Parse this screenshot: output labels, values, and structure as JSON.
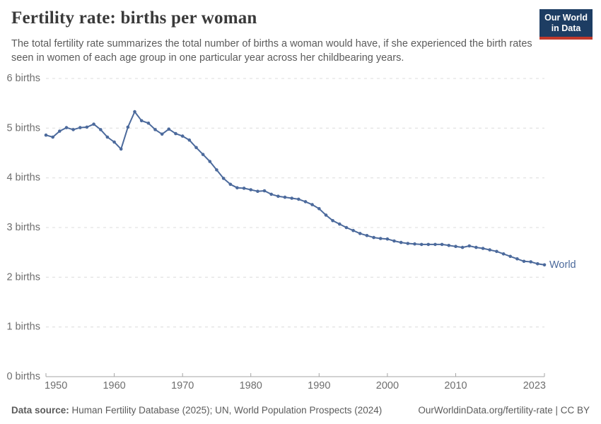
{
  "header": {
    "title": "Fertility rate: births per woman",
    "subtitle": "The total fertility rate summarizes the total number of births a woman would have, if she experienced the birth rates seen in women of each age group in one particular year across her childbearing years.",
    "logo": {
      "line1": "Our World",
      "line2": "in Data",
      "bg_color": "#1d3d63",
      "accent_color": "#c0392b"
    }
  },
  "chart_data": {
    "type": "line",
    "title": "Fertility rate: births per woman",
    "series_label": "World",
    "xlabel": "",
    "ylabel": "births",
    "xlim": [
      1950,
      2023
    ],
    "ylim": [
      0,
      6
    ],
    "grid": "horizontal-dashed",
    "legend_position": "end-of-line",
    "line_color": "#4C6A9C",
    "x_ticks": [
      1950,
      1960,
      1970,
      1980,
      1990,
      2000,
      2010,
      2023
    ],
    "y_ticks": [
      {
        "value": 0,
        "label": "0 births"
      },
      {
        "value": 1,
        "label": "1 births"
      },
      {
        "value": 2,
        "label": "2 births"
      },
      {
        "value": 3,
        "label": "3 births"
      },
      {
        "value": 4,
        "label": "4 births"
      },
      {
        "value": 5,
        "label": "5 births"
      },
      {
        "value": 6,
        "label": "6 births"
      }
    ],
    "x": [
      1950,
      1951,
      1952,
      1953,
      1954,
      1955,
      1956,
      1957,
      1958,
      1959,
      1960,
      1961,
      1962,
      1963,
      1964,
      1965,
      1966,
      1967,
      1968,
      1969,
      1970,
      1971,
      1972,
      1973,
      1974,
      1975,
      1976,
      1977,
      1978,
      1979,
      1980,
      1981,
      1982,
      1983,
      1984,
      1985,
      1986,
      1987,
      1988,
      1989,
      1990,
      1991,
      1992,
      1993,
      1994,
      1995,
      1996,
      1997,
      1998,
      1999,
      2000,
      2001,
      2002,
      2003,
      2004,
      2005,
      2006,
      2007,
      2008,
      2009,
      2010,
      2011,
      2012,
      2013,
      2014,
      2015,
      2016,
      2017,
      2018,
      2019,
      2020,
      2021,
      2022,
      2023
    ],
    "values": [
      4.86,
      4.82,
      4.94,
      5.01,
      4.97,
      5.01,
      5.02,
      5.08,
      4.97,
      4.82,
      4.72,
      4.58,
      5.02,
      5.33,
      5.15,
      5.1,
      4.97,
      4.88,
      4.98,
      4.89,
      4.84,
      4.76,
      4.61,
      4.47,
      4.33,
      4.16,
      3.99,
      3.87,
      3.8,
      3.79,
      3.76,
      3.73,
      3.74,
      3.67,
      3.63,
      3.61,
      3.59,
      3.57,
      3.52,
      3.46,
      3.38,
      3.25,
      3.14,
      3.07,
      3.0,
      2.94,
      2.88,
      2.84,
      2.8,
      2.78,
      2.77,
      2.73,
      2.7,
      2.68,
      2.67,
      2.66,
      2.66,
      2.66,
      2.66,
      2.64,
      2.62,
      2.6,
      2.63,
      2.6,
      2.58,
      2.55,
      2.52,
      2.47,
      2.42,
      2.37,
      2.32,
      2.31,
      2.27,
      2.25
    ]
  },
  "footer": {
    "source_label": "Data source:",
    "source_text": "Human Fertility Database (2025); UN, World Population Prospects (2024)",
    "attribution": "OurWorldinData.org/fertility-rate | CC BY"
  }
}
